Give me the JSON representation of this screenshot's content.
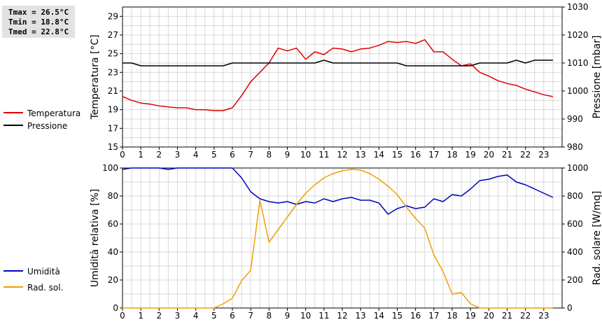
{
  "stats": {
    "tmax": "Tmax = 26.5°C",
    "tmin": "Tmin = 18.8°C",
    "tmed": "Tmed = 22.8°C"
  },
  "legend": {
    "top": [
      {
        "label": "Temperatura",
        "color": "#e00000"
      },
      {
        "label": "Pressione",
        "color": "#000000"
      }
    ],
    "bottom": [
      {
        "label": "Umidità",
        "color": "#0000c0"
      },
      {
        "label": "Rad. sol.",
        "color": "#f0a000"
      }
    ]
  },
  "chart_data": [
    {
      "type": "line",
      "ylabel": "Temperatura [°C]",
      "y2label": "Pressione [mbar]",
      "x_ticks": [
        "0",
        "1",
        "2",
        "3",
        "4",
        "5",
        "6",
        "7",
        "8",
        "9",
        "10",
        "11",
        "12",
        "13",
        "14",
        "15",
        "16",
        "17",
        "18",
        "19",
        "20",
        "21",
        "22",
        "23"
      ],
      "xlim": [
        0,
        24
      ],
      "ylim": [
        15,
        30
      ],
      "y_ticks": [
        "15",
        "17",
        "19",
        "21",
        "23",
        "25",
        "27",
        "29"
      ],
      "y2lim": [
        980,
        1030
      ],
      "y2_ticks": [
        "980",
        "990",
        "1000",
        "1010",
        "1020",
        "1030"
      ],
      "grid": true,
      "series": [
        {
          "name": "Temperatura",
          "axis": "left",
          "color": "#e00000",
          "x": [
            0,
            0.5,
            1,
            1.5,
            2,
            2.5,
            3,
            3.5,
            4,
            4.5,
            5,
            5.5,
            6,
            6.5,
            7,
            7.5,
            8,
            8.5,
            9,
            9.5,
            10,
            10.5,
            11,
            11.5,
            12,
            12.5,
            13,
            13.5,
            14,
            14.5,
            15,
            15.5,
            16,
            16.5,
            17,
            17.5,
            18,
            18.5,
            19,
            19.5,
            20,
            20.5,
            21,
            21.5,
            22,
            22.5,
            23,
            23.5
          ],
          "values": [
            20.4,
            20.0,
            19.7,
            19.6,
            19.4,
            19.3,
            19.2,
            19.2,
            19.0,
            19.0,
            18.9,
            18.9,
            19.2,
            20.5,
            22.0,
            23.0,
            24.0,
            25.6,
            25.3,
            25.6,
            24.4,
            25.2,
            24.9,
            25.6,
            25.5,
            25.2,
            25.5,
            25.6,
            25.9,
            26.3,
            26.2,
            26.3,
            26.1,
            26.5,
            25.2,
            25.2,
            24.4,
            23.7,
            23.9,
            23.0,
            22.6,
            22.1,
            21.8,
            21.6,
            21.2,
            20.9,
            20.6,
            20.4
          ]
        },
        {
          "name": "Pressione",
          "axis": "right",
          "color": "#000000",
          "x": [
            0,
            0.5,
            1,
            1.5,
            2,
            2.5,
            3,
            3.5,
            4,
            4.5,
            5,
            5.5,
            6,
            6.5,
            7,
            7.5,
            8,
            8.5,
            9,
            9.5,
            10,
            10.5,
            11,
            11.5,
            12,
            12.5,
            13,
            13.5,
            14,
            14.5,
            15,
            15.5,
            16,
            16.5,
            17,
            17.5,
            18,
            18.5,
            19,
            19.5,
            20,
            20.5,
            21,
            21.5,
            22,
            22.5,
            23,
            23.5
          ],
          "values": [
            1010,
            1010,
            1009,
            1009,
            1009,
            1009,
            1009,
            1009,
            1009,
            1009,
            1009,
            1009,
            1010,
            1010,
            1010,
            1010,
            1010,
            1010,
            1010,
            1010,
            1010,
            1010,
            1011,
            1010,
            1010,
            1010,
            1010,
            1010,
            1010,
            1010,
            1010,
            1009,
            1009,
            1009,
            1009,
            1009,
            1009,
            1009,
            1009,
            1010,
            1010,
            1010,
            1010,
            1011,
            1010,
            1011,
            1011,
            1011
          ]
        }
      ]
    },
    {
      "type": "line",
      "ylabel": "Umidità relativa [%]",
      "y2label": "Rad. solare [W/mq]",
      "x_ticks": [
        "0",
        "1",
        "2",
        "3",
        "4",
        "5",
        "6",
        "7",
        "8",
        "9",
        "10",
        "11",
        "12",
        "13",
        "14",
        "15",
        "16",
        "17",
        "18",
        "19",
        "20",
        "21",
        "22",
        "23"
      ],
      "xlim": [
        0,
        24
      ],
      "ylim": [
        0,
        100
      ],
      "y_ticks": [
        "0",
        "20",
        "40",
        "60",
        "80",
        "100"
      ],
      "y2lim": [
        0,
        1000
      ],
      "y2_ticks": [
        "0",
        "200",
        "400",
        "600",
        "800",
        "1000"
      ],
      "grid": true,
      "series": [
        {
          "name": "Umidità",
          "axis": "left",
          "color": "#0000c0",
          "x": [
            0,
            0.5,
            1,
            1.5,
            2,
            2.5,
            3,
            3.5,
            4,
            4.5,
            5,
            5.5,
            6,
            6.5,
            7,
            7.5,
            8,
            8.5,
            9,
            9.5,
            10,
            10.5,
            11,
            11.5,
            12,
            12.5,
            13,
            13.5,
            14,
            14.5,
            15,
            15.5,
            16,
            16.5,
            17,
            17.5,
            18,
            18.5,
            19,
            19.5,
            20,
            20.5,
            21,
            21.5,
            22,
            22.5,
            23,
            23.5
          ],
          "values": [
            99,
            100,
            100,
            100,
            100,
            99,
            100,
            100,
            100,
            100,
            100,
            100,
            100,
            93,
            83,
            78,
            76,
            75,
            76,
            74,
            76,
            75,
            78,
            76,
            78,
            79,
            77,
            77,
            75,
            67,
            71,
            73,
            71,
            72,
            78,
            76,
            81,
            80,
            85,
            91,
            92,
            94,
            95,
            90,
            88,
            85,
            82,
            79
          ]
        },
        {
          "name": "Rad. sol.",
          "axis": "right",
          "color": "#f0a000",
          "x": [
            0,
            0.5,
            1,
            1.5,
            2,
            2.5,
            3,
            3.5,
            4,
            4.5,
            5,
            5.5,
            6,
            6.5,
            7,
            7.5,
            8,
            8.5,
            9,
            9.5,
            10,
            10.5,
            11,
            11.5,
            12,
            12.5,
            13,
            13.5,
            14,
            14.5,
            15,
            15.5,
            16,
            16.5,
            17,
            17.5,
            18,
            18.5,
            19,
            19.5,
            20,
            20.5,
            21,
            21.5,
            22,
            22.5,
            23,
            23.5
          ],
          "values": [
            0,
            0,
            0,
            0,
            0,
            0,
            0,
            0,
            0,
            0,
            0,
            30,
            70,
            195,
            270,
            770,
            470,
            560,
            650,
            740,
            820,
            880,
            930,
            960,
            980,
            990,
            985,
            960,
            920,
            870,
            810,
            720,
            640,
            570,
            380,
            260,
            100,
            110,
            30,
            0,
            0,
            0,
            0,
            0,
            0,
            0,
            0,
            0
          ]
        }
      ]
    }
  ]
}
